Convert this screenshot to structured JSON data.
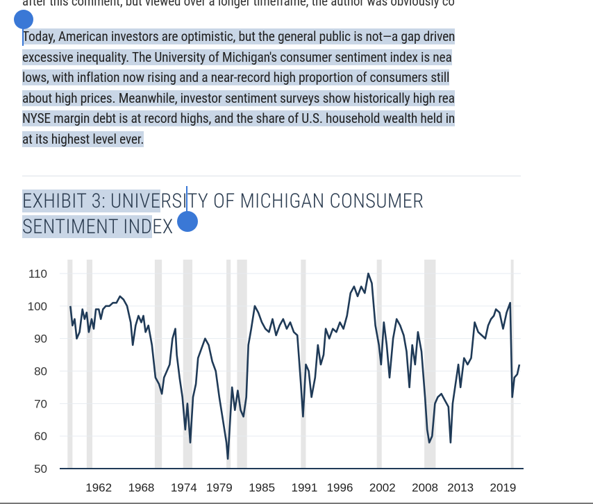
{
  "previous_text": "after this comment, but viewed over a longer timeframe, the author was obviously co",
  "paragraph_lines": [
    "Today, American investors are optimistic, but the general public is not—a gap driven",
    "excessive inequality. The University of Michigan's consumer sentiment index is nea",
    "lows, with inflation now rising and a near-record high proportion of consumers still ",
    "about high prices. Meanwhile, investor sentiment surveys show historically high rea",
    "NYSE margin debt is at record highs, and the share of U.S. household wealth held in",
    "at its highest level ever."
  ],
  "exhibit_title": {
    "line1_selected": "EXHIBIT 3: UNIVE",
    "line1_rest": "RSITY OF MICHIGAN CONSUMER",
    "line2_selected": "SENTIMENT IND",
    "line2_rest": "EX"
  },
  "colors": {
    "selection": "#c9d6e6",
    "handle": "#3a78d6",
    "line": "#1f3a57",
    "recession": "#e6e6e6",
    "gridline": "#e6ebf0"
  },
  "chart_data": {
    "type": "line",
    "title": "EXHIBIT 3: UNIVERSITY OF MICHIGAN CONSUMER SENTIMENT INDEX",
    "xlabel": "",
    "ylabel": "",
    "ylim": [
      50,
      110
    ],
    "yticks": [
      110,
      100,
      90,
      80,
      70,
      60,
      50
    ],
    "xticks": [
      "1962",
      "1968",
      "1974",
      "1979",
      "1985",
      "1991",
      "1996",
      "2002",
      "2008",
      "2013",
      "2019"
    ],
    "xlim": [
      1956.5,
      2021.5
    ],
    "recessions": [
      [
        1957.6,
        1958.3
      ],
      [
        1960.3,
        1961.1
      ],
      [
        1969.9,
        1970.9
      ],
      [
        1973.9,
        1975.2
      ],
      [
        1980.0,
        1980.6
      ],
      [
        1981.5,
        1982.9
      ],
      [
        1990.5,
        1991.2
      ],
      [
        2001.2,
        2001.9
      ],
      [
        2007.9,
        2009.5
      ],
      [
        2020.1,
        2020.4
      ]
    ],
    "series": [
      {
        "values": [
          [
            1958.0,
            100
          ],
          [
            1958.3,
            94
          ],
          [
            1958.6,
            96
          ],
          [
            1958.9,
            90
          ],
          [
            1959.3,
            92
          ],
          [
            1959.7,
            99
          ],
          [
            1960.0,
            96
          ],
          [
            1960.3,
            98
          ],
          [
            1960.6,
            92
          ],
          [
            1961.0,
            96
          ],
          [
            1961.3,
            93
          ],
          [
            1961.6,
            99
          ],
          [
            1962.0,
            99
          ],
          [
            1962.3,
            96
          ],
          [
            1962.6,
            99
          ],
          [
            1963.0,
            100
          ],
          [
            1963.5,
            100
          ],
          [
            1964.0,
            101
          ],
          [
            1964.5,
            101
          ],
          [
            1965.0,
            103
          ],
          [
            1965.5,
            102
          ],
          [
            1966.0,
            100
          ],
          [
            1966.5,
            95
          ],
          [
            1966.8,
            88
          ],
          [
            1967.2,
            94
          ],
          [
            1967.6,
            97
          ],
          [
            1968.0,
            95
          ],
          [
            1968.3,
            97
          ],
          [
            1968.6,
            92
          ],
          [
            1969.0,
            94
          ],
          [
            1969.5,
            88
          ],
          [
            1970.0,
            78
          ],
          [
            1970.5,
            76
          ],
          [
            1970.9,
            73
          ],
          [
            1971.2,
            78
          ],
          [
            1971.6,
            80
          ],
          [
            1972.0,
            82
          ],
          [
            1972.4,
            90
          ],
          [
            1972.8,
            93
          ],
          [
            1973.0,
            85
          ],
          [
            1973.4,
            78
          ],
          [
            1973.8,
            72
          ],
          [
            1974.2,
            62
          ],
          [
            1974.5,
            70
          ],
          [
            1974.9,
            58
          ],
          [
            1975.3,
            72
          ],
          [
            1975.7,
            76
          ],
          [
            1976.0,
            84
          ],
          [
            1976.5,
            87
          ],
          [
            1977.0,
            90
          ],
          [
            1977.5,
            88
          ],
          [
            1978.0,
            83
          ],
          [
            1978.5,
            80
          ],
          [
            1979.0,
            72
          ],
          [
            1979.5,
            65
          ],
          [
            1980.0,
            58
          ],
          [
            1980.2,
            53
          ],
          [
            1980.5,
            64
          ],
          [
            1980.8,
            75
          ],
          [
            1981.2,
            68
          ],
          [
            1981.6,
            74
          ],
          [
            1982.0,
            68
          ],
          [
            1982.4,
            66
          ],
          [
            1982.8,
            72
          ],
          [
            1983.1,
            88
          ],
          [
            1983.5,
            93
          ],
          [
            1984.0,
            100
          ],
          [
            1984.5,
            98
          ],
          [
            1985.0,
            95
          ],
          [
            1985.5,
            93
          ],
          [
            1986.0,
            92
          ],
          [
            1986.5,
            96
          ],
          [
            1987.0,
            91
          ],
          [
            1987.5,
            94
          ],
          [
            1988.0,
            96
          ],
          [
            1988.5,
            93
          ],
          [
            1989.0,
            95
          ],
          [
            1989.5,
            92
          ],
          [
            1990.0,
            91
          ],
          [
            1990.5,
            76
          ],
          [
            1990.8,
            66
          ],
          [
            1991.2,
            82
          ],
          [
            1991.6,
            80
          ],
          [
            1992.0,
            72
          ],
          [
            1992.5,
            78
          ],
          [
            1992.9,
            88
          ],
          [
            1993.3,
            82
          ],
          [
            1993.7,
            85
          ],
          [
            1994.0,
            93
          ],
          [
            1994.5,
            90
          ],
          [
            1995.0,
            93
          ],
          [
            1995.5,
            92
          ],
          [
            1996.0,
            95
          ],
          [
            1996.5,
            93
          ],
          [
            1997.0,
            97
          ],
          [
            1997.5,
            104
          ],
          [
            1998.0,
            106
          ],
          [
            1998.5,
            103
          ],
          [
            1999.0,
            106
          ],
          [
            1999.5,
            104
          ],
          [
            2000.0,
            110
          ],
          [
            2000.5,
            107
          ],
          [
            2001.0,
            94
          ],
          [
            2001.5,
            88
          ],
          [
            2001.8,
            82
          ],
          [
            2002.2,
            95
          ],
          [
            2002.6,
            88
          ],
          [
            2003.0,
            78
          ],
          [
            2003.5,
            90
          ],
          [
            2004.0,
            96
          ],
          [
            2004.5,
            94
          ],
          [
            2005.0,
            91
          ],
          [
            2005.4,
            86
          ],
          [
            2005.8,
            75
          ],
          [
            2006.2,
            88
          ],
          [
            2006.6,
            82
          ],
          [
            2007.0,
            92
          ],
          [
            2007.5,
            86
          ],
          [
            2008.0,
            72
          ],
          [
            2008.3,
            62
          ],
          [
            2008.6,
            58
          ],
          [
            2009.0,
            60
          ],
          [
            2009.4,
            70
          ],
          [
            2009.8,
            72
          ],
          [
            2010.3,
            73
          ],
          [
            2010.8,
            71
          ],
          [
            2011.3,
            69
          ],
          [
            2011.6,
            58
          ],
          [
            2011.9,
            70
          ],
          [
            2012.3,
            76
          ],
          [
            2012.7,
            82
          ],
          [
            2013.0,
            75
          ],
          [
            2013.5,
            84
          ],
          [
            2014.0,
            82
          ],
          [
            2014.5,
            84
          ],
          [
            2015.0,
            95
          ],
          [
            2015.5,
            92
          ],
          [
            2016.0,
            91
          ],
          [
            2016.5,
            90
          ],
          [
            2016.9,
            94
          ],
          [
            2017.3,
            96
          ],
          [
            2017.7,
            97
          ],
          [
            2018.0,
            99
          ],
          [
            2018.5,
            98
          ],
          [
            2019.0,
            93
          ],
          [
            2019.5,
            98
          ],
          [
            2020.0,
            101
          ],
          [
            2020.3,
            72
          ],
          [
            2020.6,
            78
          ],
          [
            2021.0,
            79
          ],
          [
            2021.3,
            82
          ]
        ]
      }
    ]
  }
}
